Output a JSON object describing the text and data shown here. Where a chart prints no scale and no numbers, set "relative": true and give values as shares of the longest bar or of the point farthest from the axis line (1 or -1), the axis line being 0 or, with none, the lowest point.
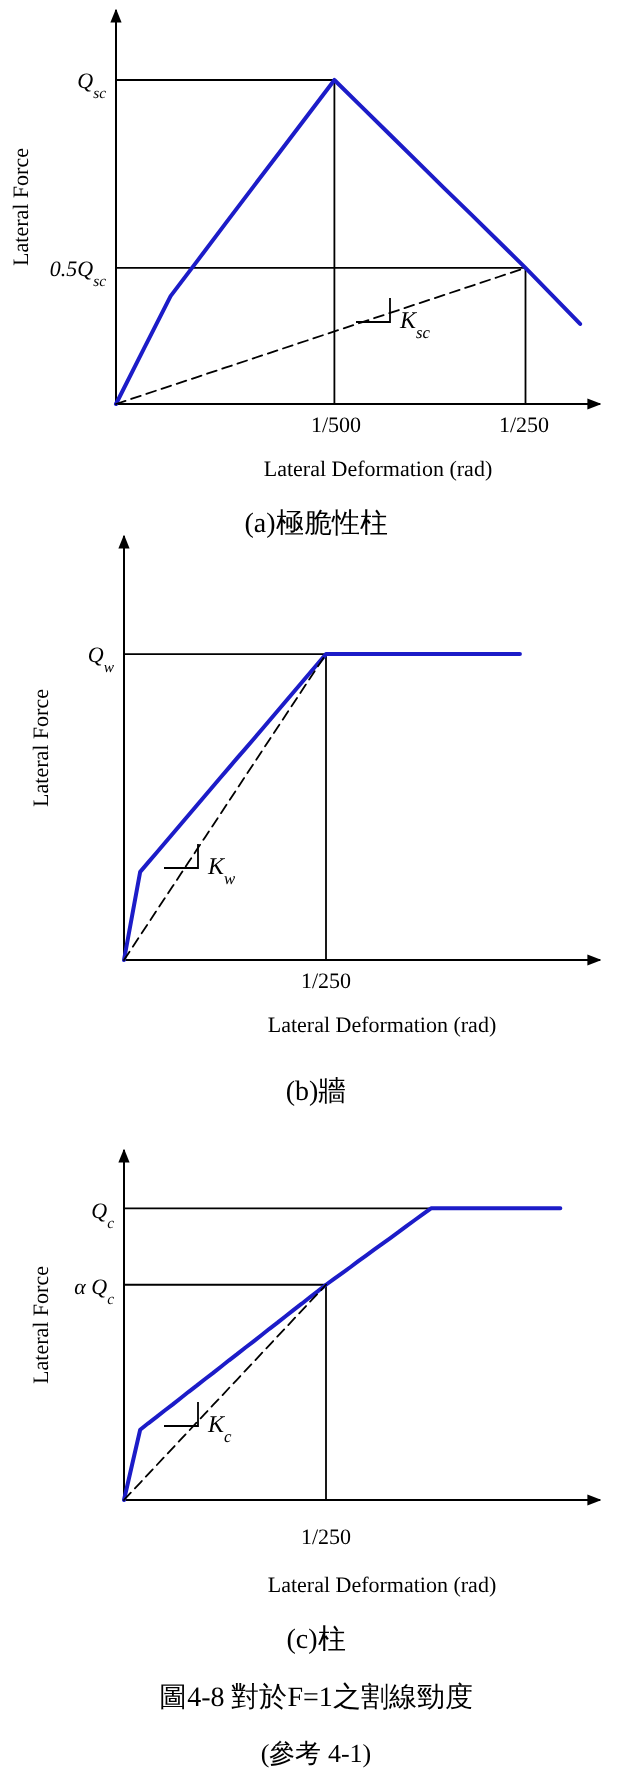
{
  "chart_data": [
    {
      "type": "line",
      "relative": true,
      "xlabel": "Lateral Deformation (rad)",
      "ylabel": "Lateral Force",
      "categories": [
        null,
        null,
        null,
        null,
        null,
        null,
        null,
        null,
        null,
        null,
        null,
        null,
        null,
        null,
        null,
        null,
        null,
        null
      ],
      "series": [
        {
          "color": "#1c1cc8",
          "values": [
            0,
            0.167,
            0.333,
            0.444,
            0.556,
            0.667,
            0.778,
            0.889,
            1,
            0.917,
            0.834,
            0.751,
            0.668,
            0.586,
            0.503,
            0.42,
            0.334,
            0.247
          ]
        },
        {
          "color": "#000000",
          "line_style": "dashed",
          "values": [
            0,
            0.028,
            0.056,
            0.084,
            0.112,
            0.14,
            0.168,
            0.196,
            0.224,
            0.252,
            0.28,
            0.308,
            0.336,
            0.364,
            0.392,
            0.42,
            null,
            null
          ]
        }
      ],
      "annotations": [
        "Q$_{sc}$",
        "0.5Q$_{sc}$",
        "1/500",
        "1/250",
        "K$_{sc}$",
        "(a)極脆性柱"
      ]
    },
    {
      "type": "line",
      "relative": true,
      "xlabel": "Lateral Deformation (rad)",
      "ylabel": "Lateral Force",
      "categories": [
        null,
        null,
        null,
        null,
        null,
        null,
        null,
        null,
        null,
        null,
        null,
        null,
        null,
        null,
        null,
        null,
        null,
        null,
        null,
        null,
        null,
        null,
        null,
        null,
        null,
        null,
        null,
        null,
        null,
        null,
        null,
        null,
        null,
        null,
        null,
        null,
        null,
        null,
        null,
        null,
        null,
        null,
        null,
        null,
        null,
        null,
        null,
        null,
        null,
        null
      ],
      "series": [
        {
          "color": "#1c1cc8",
          "values": [
            0,
            0.144,
            0.288,
            0.319,
            0.35,
            0.381,
            0.412,
            0.443,
            0.474,
            0.505,
            0.536,
            0.567,
            0.598,
            0.629,
            0.66,
            0.69,
            0.721,
            0.752,
            0.783,
            0.814,
            0.845,
            0.876,
            0.907,
            0.938,
            0.969,
            1,
            1,
            1,
            1,
            1,
            1,
            1,
            1,
            1,
            1,
            1,
            1,
            1,
            1,
            1,
            1,
            1,
            1,
            1,
            1,
            1,
            1,
            1,
            1,
            1
          ]
        },
        {
          "color": "#000000",
          "line_style": "dashed",
          "values": [
            0,
            0.04,
            0.08,
            0.12,
            0.16,
            0.2,
            0.24,
            0.28,
            0.32,
            0.36,
            0.4,
            0.44,
            0.48,
            0.52,
            0.56,
            0.6,
            0.64,
            0.68,
            0.72,
            0.76,
            0.8,
            0.84,
            0.88,
            0.92,
            0.96,
            1,
            null,
            null,
            null,
            null,
            null,
            null,
            null,
            null,
            null,
            null,
            null,
            null,
            null,
            null,
            null,
            null,
            null,
            null,
            null,
            null,
            null,
            null,
            null,
            null
          ]
        }
      ],
      "annotations": [
        "Q$_{w}$",
        "1/250",
        "K$_{w}$",
        "(b)牆"
      ]
    },
    {
      "type": "line",
      "relative": true,
      "xlabel": "Lateral Deformation (rad)",
      "ylabel": "Lateral Force",
      "categories": [
        null,
        null,
        null,
        null,
        null,
        null,
        null,
        null,
        null,
        null,
        null,
        null,
        null,
        null,
        null,
        null,
        null,
        null,
        null,
        null,
        null,
        null,
        null,
        null,
        null,
        null,
        null,
        null,
        null,
        null,
        null,
        null,
        null,
        null,
        null,
        null,
        null,
        null,
        null,
        null,
        null,
        null,
        null,
        null,
        null,
        null,
        null,
        null,
        null,
        null,
        null,
        null,
        null,
        null,
        null
      ],
      "series": [
        {
          "color": "#1c1cc8",
          "values": [
            0,
            0.121,
            0.241,
            0.263,
            0.284,
            0.306,
            0.327,
            0.349,
            0.371,
            0.392,
            0.414,
            0.435,
            0.457,
            0.479,
            0.5,
            0.522,
            0.543,
            0.565,
            0.587,
            0.608,
            0.63,
            0.652,
            0.673,
            0.695,
            0.716,
            0.738,
            0.758,
            0.778,
            0.798,
            0.819,
            0.839,
            0.859,
            0.879,
            0.899,
            0.919,
            0.94,
            0.96,
            0.98,
            1,
            1,
            1,
            1,
            1,
            1,
            1,
            1,
            1,
            1,
            1,
            1,
            1,
            1,
            1,
            1,
            1
          ]
        },
        {
          "color": "#000000",
          "line_style": "dashed",
          "values": [
            0,
            0.03,
            0.059,
            0.089,
            0.118,
            0.148,
            0.177,
            0.207,
            0.236,
            0.266,
            0.295,
            0.325,
            0.354,
            0.384,
            0.413,
            0.443,
            0.472,
            0.502,
            0.531,
            0.561,
            0.59,
            0.62,
            0.649,
            0.679,
            0.708,
            0.738,
            null,
            null,
            null,
            null,
            null,
            null,
            null,
            null,
            null,
            null,
            null,
            null,
            null,
            null,
            null,
            null,
            null,
            null,
            null,
            null,
            null,
            null,
            null,
            null,
            null,
            null,
            null,
            null,
            null
          ]
        }
      ],
      "annotations": [
        "Q$_{c}$",
        "α Q$_{c}$",
        "1/250",
        "K$_{c}$",
        "(c)柱",
        "圖4-8  對於F=1之割線勁度",
        "(參考 4-1)"
      ]
    }
  ]
}
